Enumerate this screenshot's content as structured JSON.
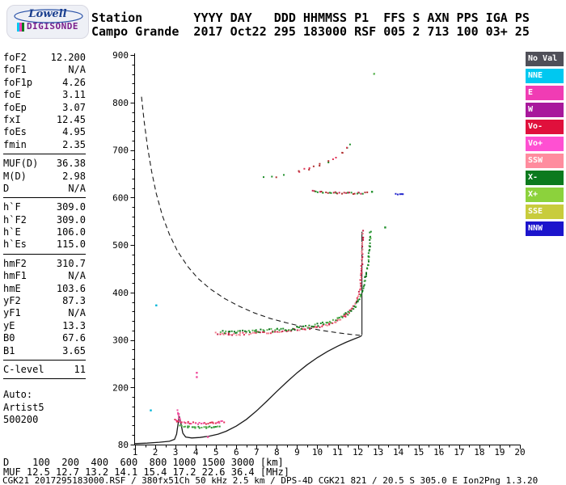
{
  "logo": {
    "brand": "Lowell",
    "product": "DIGISONDE",
    "brand_color": "#1b3f8f",
    "product_color": "#7a1f8c"
  },
  "header": {
    "line1": "Station       YYYY DAY   DDD HHMMSS P1  FFS S AXN PPS IGA PS",
    "line2": "Campo Grande  2017 Oct22 295 183000 RSF 005 2 713 100 03+ 25"
  },
  "params": {
    "groups": [
      {
        "rows": [
          {
            "label": "foF2",
            "value": "12.200"
          },
          {
            "label": "foF1",
            "value": "N/A"
          },
          {
            "label": "foF1p",
            "value": "4.26"
          },
          {
            "label": "foE",
            "value": "3.11"
          },
          {
            "label": "foEp",
            "value": "3.07"
          },
          {
            "label": "fxI",
            "value": "12.45"
          },
          {
            "label": "foEs",
            "value": "4.95"
          },
          {
            "label": "fmin",
            "value": "2.35"
          }
        ]
      },
      {
        "rows": [
          {
            "label": "MUF(D)",
            "value": "36.38"
          },
          {
            "label": "M(D)",
            "value": "2.98"
          },
          {
            "label": "D",
            "value": "N/A"
          }
        ]
      },
      {
        "rows": [
          {
            "label": "h`F",
            "value": "309.0"
          },
          {
            "label": "h`F2",
            "value": "309.0"
          },
          {
            "label": "h`E",
            "value": "106.0"
          },
          {
            "label": "h`Es",
            "value": "115.0"
          }
        ]
      },
      {
        "rows": [
          {
            "label": "hmF2",
            "value": "310.7"
          },
          {
            "label": "hmF1",
            "value": "N/A"
          },
          {
            "label": "hmE",
            "value": "103.6"
          },
          {
            "label": "yF2",
            "value": "87.3"
          },
          {
            "label": "yF1",
            "value": "N/A"
          },
          {
            "label": "yE",
            "value": "13.3"
          },
          {
            "label": "B0",
            "value": "67.6"
          },
          {
            "label": "B1",
            "value": "3.65"
          }
        ]
      },
      {
        "rows": [
          {
            "label": "C-level",
            "value": "11"
          }
        ]
      },
      {
        "rows": [
          {
            "label": "Auto:",
            "value": ""
          },
          {
            "label": "Artist5",
            "value": ""
          },
          {
            "label": "500200",
            "value": ""
          }
        ]
      }
    ]
  },
  "legend": {
    "items": [
      {
        "label": "No Val",
        "color": "#4f4f58"
      },
      {
        "label": "NNE",
        "color": "#00c8f0"
      },
      {
        "label": "E",
        "color": "#f03cb4"
      },
      {
        "label": "W",
        "color": "#a8189c"
      },
      {
        "label": "Vo-",
        "color": "#e0103c"
      },
      {
        "label": "Vo+",
        "color": "#ff50d2"
      },
      {
        "label": "SSW",
        "color": "#ff8c9e"
      },
      {
        "label": "X-",
        "color": "#0c7a1e"
      },
      {
        "label": "X+",
        "color": "#8cd23c"
      },
      {
        "label": "SSE",
        "color": "#c8cc3c"
      },
      {
        "label": "NNW",
        "color": "#1c14cc"
      }
    ]
  },
  "footer": {
    "d_line": "D    100  200  400  600  800 1000 1500 3000 [km]",
    "muf_line": "MUF 12.5 12.7 13.2 14.1 15.4 17.2 22.6 36.4 [MHz]",
    "file_line": "CGK21_2017295183000.RSF / 380fx51Ch 50 kHz 2.5 km / DPS-4D CGK21 821 / 20.5 S 305.0 E Ion2Png 1.3.20"
  },
  "chart_data": {
    "type": "scatter",
    "xlim": [
      1,
      20
    ],
    "ylim": [
      80,
      900
    ],
    "x_unit": "MHz",
    "y_unit": "km",
    "x_ticks": [
      1,
      2,
      3,
      4,
      5,
      6,
      7,
      8,
      9,
      10,
      11,
      12,
      13,
      14,
      15,
      16,
      17,
      18,
      19,
      20
    ],
    "y_tick_labels": [
      80,
      200,
      300,
      400,
      500,
      600,
      700,
      800,
      900
    ],
    "grid": false,
    "legend_position": "right",
    "series": [
      {
        "name": "true-height-profile",
        "type": "line",
        "color": "#1a1a1a",
        "width": 1.3,
        "points": [
          [
            1.0,
            82
          ],
          [
            1.6,
            83
          ],
          [
            2.2,
            85
          ],
          [
            2.7,
            87
          ],
          [
            2.95,
            91
          ],
          [
            3.05,
            102
          ],
          [
            3.12,
            122
          ],
          [
            3.18,
            140
          ],
          [
            3.26,
            126
          ],
          [
            3.36,
            104
          ],
          [
            3.5,
            96
          ],
          [
            3.8,
            94
          ],
          [
            4.2,
            95
          ],
          [
            4.7,
            98
          ],
          [
            5.1,
            102
          ],
          [
            5.5,
            108
          ],
          [
            6.0,
            119
          ],
          [
            6.5,
            133
          ],
          [
            7.0,
            151
          ],
          [
            7.5,
            171
          ],
          [
            8.0,
            192
          ],
          [
            8.5,
            212
          ],
          [
            9.0,
            231
          ],
          [
            9.5,
            248
          ],
          [
            10.0,
            263
          ],
          [
            10.5,
            276
          ],
          [
            11.0,
            287
          ],
          [
            11.4,
            295
          ],
          [
            11.8,
            302
          ],
          [
            12.1,
            307
          ],
          [
            12.2,
            310
          ]
        ]
      },
      {
        "name": "profile-peak-asymptote",
        "type": "line",
        "color": "#2a2a2a",
        "width": 1.2,
        "points": [
          [
            12.2,
            311
          ],
          [
            12.2,
            528
          ]
        ]
      },
      {
        "name": "transmission-curve",
        "type": "dashed",
        "color": "#1a1a1a",
        "width": 1.1,
        "points": [
          [
            1.32,
            812
          ],
          [
            1.45,
            760
          ],
          [
            1.62,
            706
          ],
          [
            1.82,
            655
          ],
          [
            2.05,
            608
          ],
          [
            2.35,
            562
          ],
          [
            2.7,
            522
          ],
          [
            3.1,
            487
          ],
          [
            3.6,
            455
          ],
          [
            4.1,
            430
          ],
          [
            4.7,
            408
          ],
          [
            5.4,
            388
          ],
          [
            6.1,
            372
          ],
          [
            6.9,
            357
          ],
          [
            7.7,
            345
          ],
          [
            8.5,
            336
          ],
          [
            9.3,
            328
          ],
          [
            10.1,
            321
          ],
          [
            10.9,
            316
          ],
          [
            11.6,
            312
          ],
          [
            12.1,
            310
          ]
        ]
      },
      {
        "name": "F-trace-O-mode",
        "type": "trace",
        "colors": [
          "#e03255",
          "#f2808f",
          "#c81e46"
        ],
        "spread": 3,
        "points": [
          [
            5.0,
            314
          ],
          [
            5.6,
            312
          ],
          [
            6.2,
            313
          ],
          [
            7.0,
            315
          ],
          [
            7.8,
            317
          ],
          [
            8.6,
            320
          ],
          [
            9.4,
            324
          ],
          [
            10.0,
            328
          ],
          [
            10.6,
            334
          ],
          [
            11.0,
            341
          ],
          [
            11.4,
            351
          ],
          [
            11.7,
            364
          ],
          [
            11.95,
            382
          ],
          [
            12.1,
            405
          ],
          [
            12.18,
            440
          ],
          [
            12.22,
            480
          ],
          [
            12.25,
            530
          ]
        ]
      },
      {
        "name": "F-trace-X-mode",
        "type": "trace",
        "colors": [
          "#1f8f2a",
          "#55b14e",
          "#0c711c"
        ],
        "spread": 4,
        "points": [
          [
            5.2,
            318
          ],
          [
            6.0,
            317
          ],
          [
            7.0,
            319
          ],
          [
            8.0,
            321
          ],
          [
            9.0,
            325
          ],
          [
            9.8,
            330
          ],
          [
            10.5,
            337
          ],
          [
            11.0,
            344
          ],
          [
            11.5,
            356
          ],
          [
            11.9,
            372
          ],
          [
            12.15,
            395
          ],
          [
            12.35,
            425
          ],
          [
            12.5,
            460
          ],
          [
            12.58,
            495
          ],
          [
            12.62,
            528
          ]
        ]
      },
      {
        "name": "Es-trace-O",
        "type": "trace",
        "colors": [
          "#f04f9e",
          "#e03255"
        ],
        "spread": 2.5,
        "points": [
          [
            2.95,
            131
          ],
          [
            3.1,
            129
          ],
          [
            3.3,
            127
          ],
          [
            3.6,
            126
          ],
          [
            4.0,
            125
          ],
          [
            4.4,
            125
          ],
          [
            4.8,
            126
          ],
          [
            5.15,
            127
          ],
          [
            5.4,
            128
          ]
        ]
      },
      {
        "name": "Es-trace-X",
        "type": "trace",
        "colors": [
          "#1f8f2a",
          "#55b14e"
        ],
        "spread": 2,
        "points": [
          [
            3.2,
            119
          ],
          [
            3.6,
            117
          ],
          [
            4.0,
            116
          ],
          [
            4.5,
            116
          ],
          [
            4.9,
            117
          ],
          [
            5.2,
            118
          ]
        ]
      },
      {
        "name": "Es-cusp",
        "type": "trace",
        "colors": [
          "#f04f9e"
        ],
        "spread": 2,
        "points": [
          [
            3.1,
            152
          ],
          [
            3.14,
            143
          ],
          [
            3.18,
            135
          ],
          [
            3.22,
            129
          ]
        ]
      },
      {
        "name": "second-hop-flat",
        "type": "trace",
        "colors": [
          "#1f8f2a",
          "#b03030",
          "#cc2255"
        ],
        "spread": 2,
        "points": [
          [
            9.75,
            613
          ],
          [
            10.3,
            611
          ],
          [
            10.9,
            610
          ],
          [
            11.5,
            609
          ],
          [
            12.05,
            609
          ],
          [
            12.45,
            610
          ]
        ]
      },
      {
        "name": "second-hop-oblique",
        "type": "trace",
        "sparse": true,
        "colors": [
          "#1f8f2a",
          "#e03255",
          "#b03030"
        ],
        "spread": 3.5,
        "points": [
          [
            7.35,
            640
          ],
          [
            7.95,
            644
          ],
          [
            8.55,
            649
          ],
          [
            9.1,
            655
          ],
          [
            9.6,
            661
          ],
          [
            10.1,
            668
          ],
          [
            10.55,
            676
          ],
          [
            10.95,
            685
          ],
          [
            11.25,
            694
          ],
          [
            11.45,
            702
          ],
          [
            11.62,
            709
          ],
          [
            11.78,
            716
          ]
        ]
      },
      {
        "name": "drift-segment",
        "type": "trace",
        "colors": [
          "#2326cc"
        ],
        "spread": 1,
        "points": [
          [
            13.85,
            607
          ],
          [
            14.25,
            607
          ]
        ]
      },
      {
        "name": "high-scatter",
        "type": "trace",
        "sparse": true,
        "colors": [
          "#1f8f2a",
          "#00b6d8",
          "#55b14e"
        ],
        "spread": 5,
        "points": [
          [
            12.42,
            845
          ],
          [
            12.6,
            852
          ],
          [
            12.8,
            858
          ],
          [
            13.0,
            850
          ],
          [
            13.3,
            851
          ],
          [
            13.55,
            846
          ]
        ]
      },
      {
        "name": "stray-echoes",
        "type": "points",
        "items": [
          {
            "x": 2.05,
            "y": 373,
            "color": "#00b6d8"
          },
          {
            "x": 1.78,
            "y": 152,
            "color": "#00b6d8"
          },
          {
            "x": 13.35,
            "y": 537,
            "color": "#1f8f2a"
          },
          {
            "x": 4.05,
            "y": 231,
            "color": "#f04f9e"
          },
          {
            "x": 4.05,
            "y": 222,
            "color": "#f04f9e"
          },
          {
            "x": 12.7,
            "y": 612,
            "color": "#1f8f2a"
          },
          {
            "x": 4.6,
            "y": 96,
            "color": "#f04f9e"
          }
        ]
      }
    ]
  }
}
